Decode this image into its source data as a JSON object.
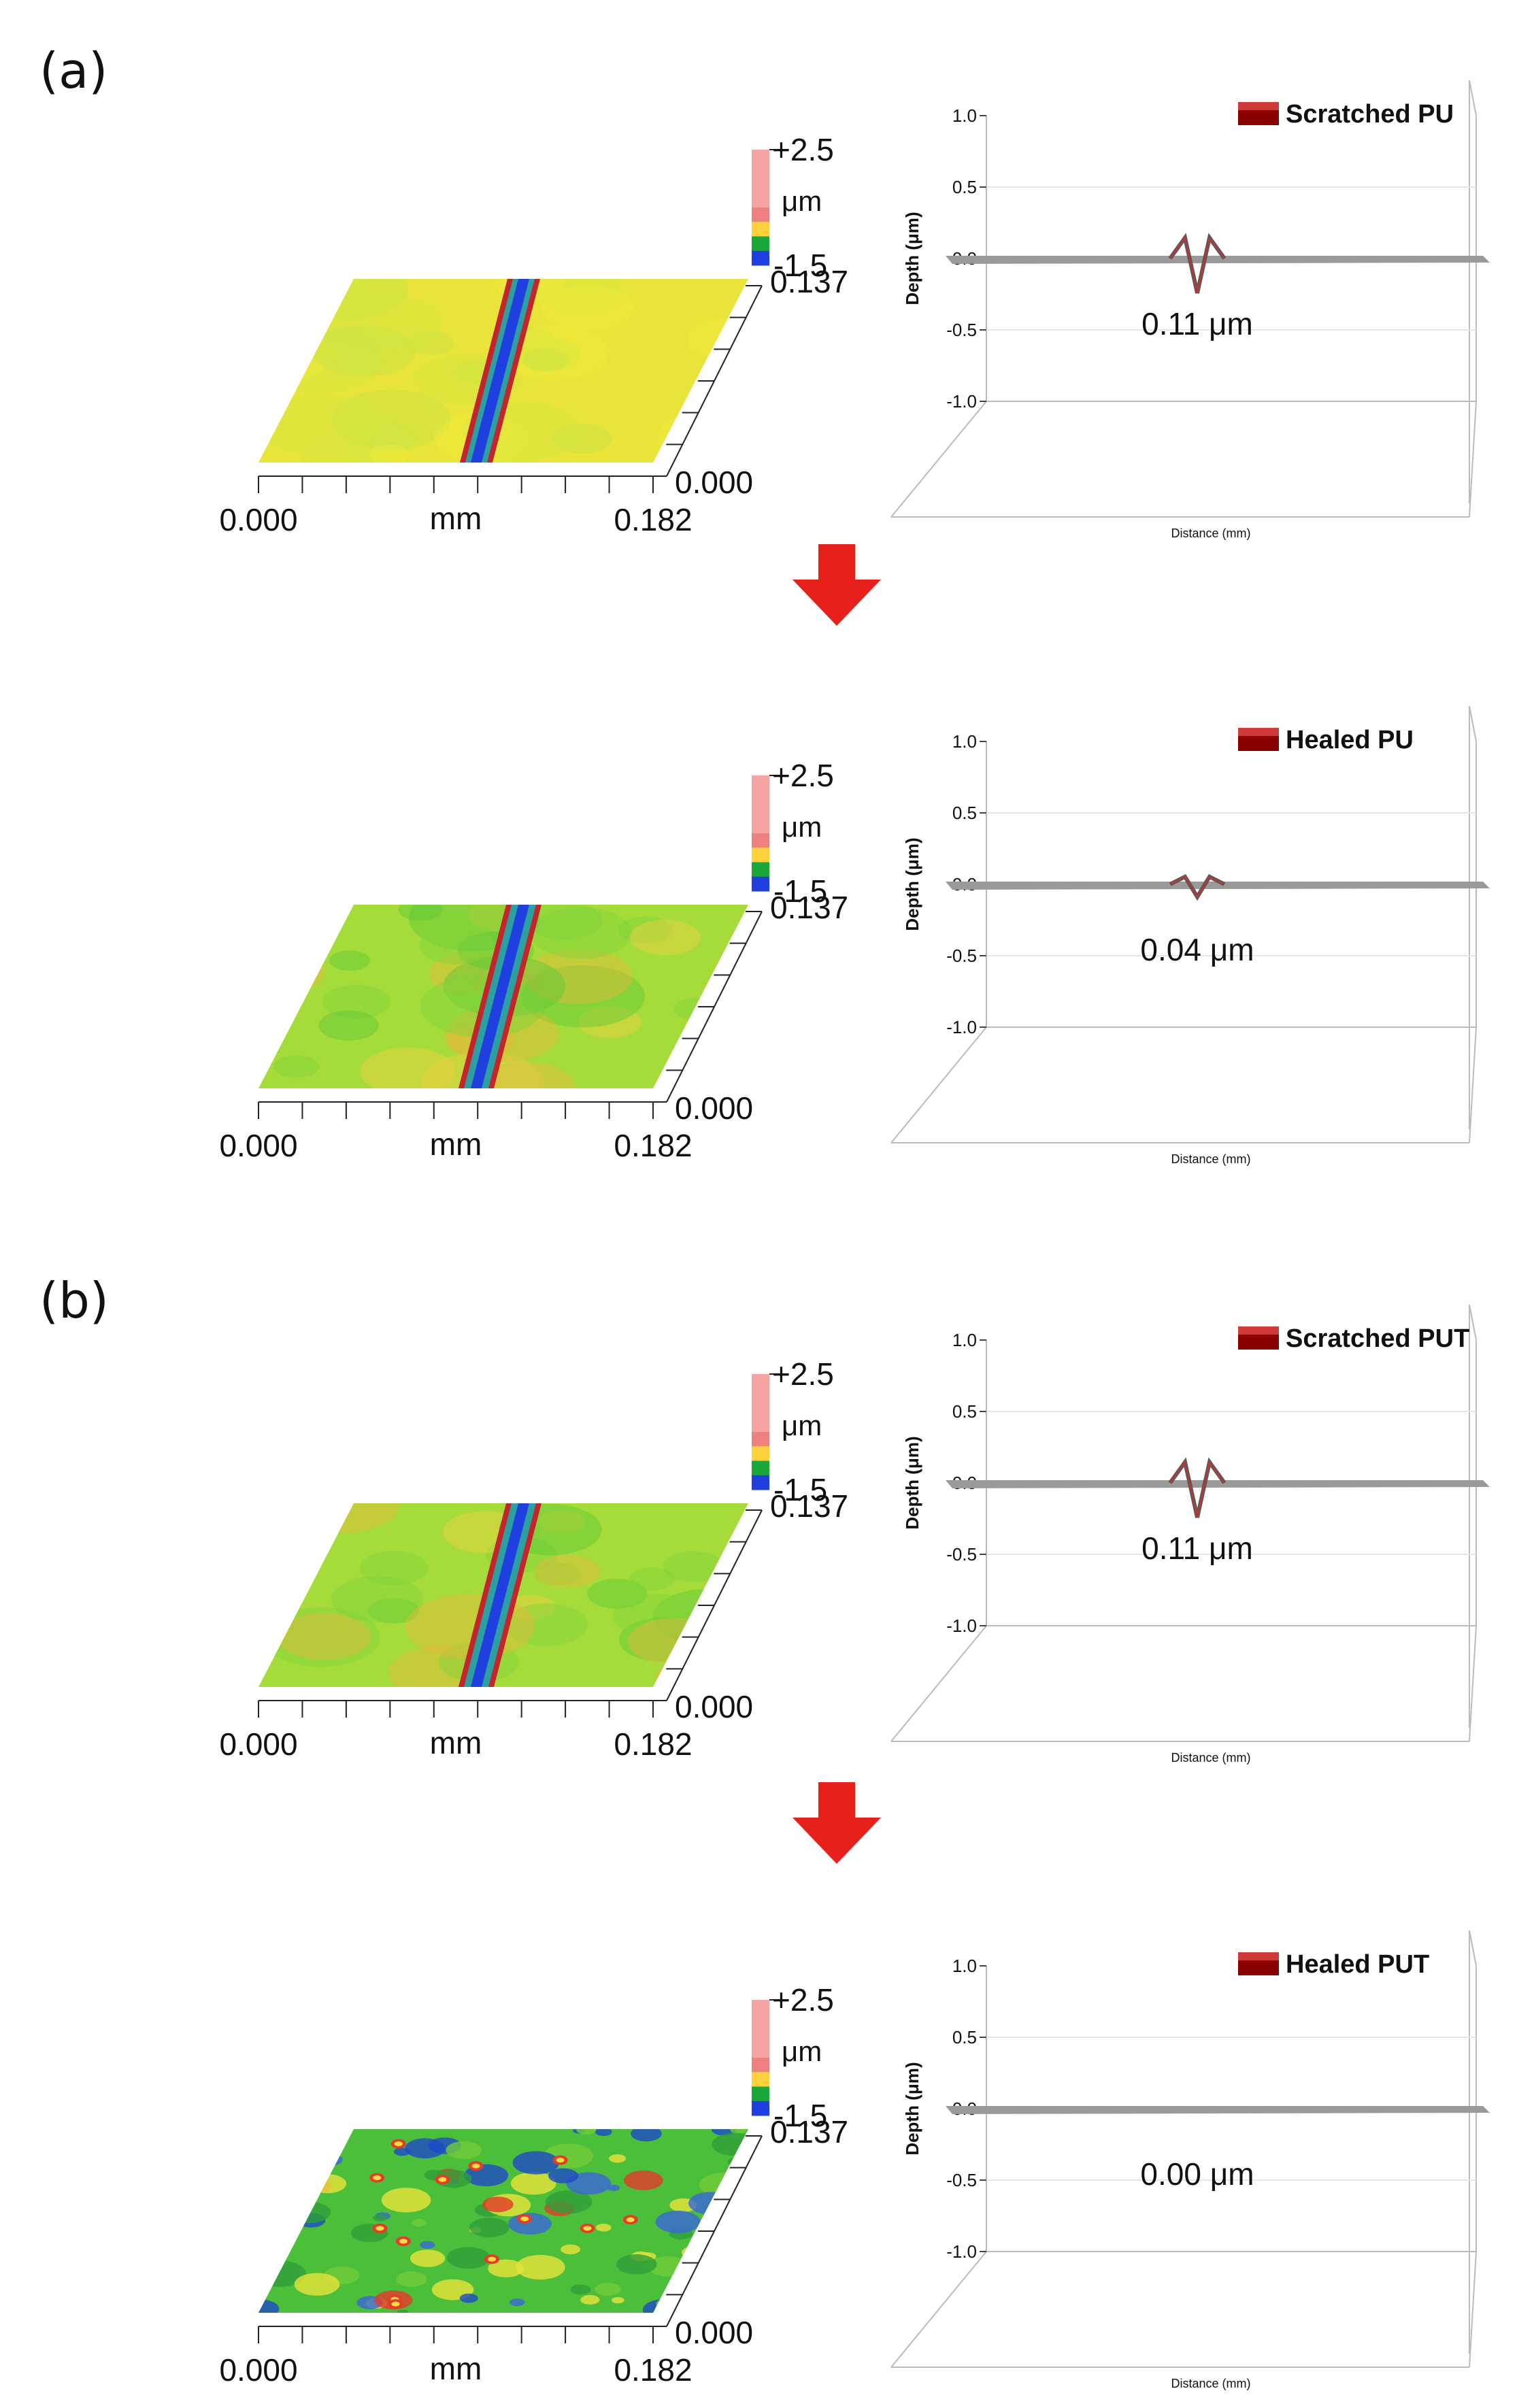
{
  "panel_labels": [
    "(a)",
    "(b)"
  ],
  "chart_data": [
    {
      "type": "heatmap",
      "sample": "Scratched PU",
      "colorbar": {
        "max_label": "+2.5",
        "unit_label": "μm",
        "min_label": "-1.5"
      },
      "x_axis": {
        "start_label": "0.000",
        "unit_label": "mm",
        "end_label": "0.182"
      },
      "y_axis": {
        "start_label": "0.000",
        "end_label": "0.137"
      },
      "profile": {
        "ylim": [
          -1.0,
          1.0
        ],
        "yticks": [
          "1.0",
          "0.5",
          "0.0",
          "-0.5",
          "-1.0"
        ],
        "ylabel": "Depth (μm)",
        "xlabel": "Distance (mm)",
        "legend": "Scratched PU",
        "depth_label": "0.11 μm",
        "depth": 0.11
      }
    },
    {
      "type": "heatmap",
      "sample": "Healed PU",
      "colorbar": {
        "max_label": "+2.5",
        "unit_label": "μm",
        "min_label": "-1.5"
      },
      "x_axis": {
        "start_label": "0.000",
        "unit_label": "mm",
        "end_label": "0.182"
      },
      "y_axis": {
        "start_label": "0.000",
        "end_label": "0.137"
      },
      "profile": {
        "ylim": [
          -1.0,
          1.0
        ],
        "yticks": [
          "1.0",
          "0.5",
          "0.0",
          "-0.5",
          "-1.0"
        ],
        "ylabel": "Depth (μm)",
        "xlabel": "Distance (mm)",
        "legend": "Healed PU",
        "depth_label": "0.04 μm",
        "depth": 0.04
      }
    },
    {
      "type": "heatmap",
      "sample": "Scratched PUT",
      "colorbar": {
        "max_label": "+2.5",
        "unit_label": "μm",
        "min_label": "-1.5"
      },
      "x_axis": {
        "start_label": "0.000",
        "unit_label": "mm",
        "end_label": "0.182"
      },
      "y_axis": {
        "start_label": "0.000",
        "end_label": "0.137"
      },
      "profile": {
        "ylim": [
          -1.0,
          1.0
        ],
        "yticks": [
          "1.0",
          "0.5",
          "0.0",
          "-0.5",
          "-1.0"
        ],
        "ylabel": "Depth (μm)",
        "xlabel": "Distance (mm)",
        "legend": "Scratched PUT",
        "depth_label": "0.11 μm",
        "depth": 0.11
      }
    },
    {
      "type": "heatmap",
      "sample": "Healed PUT",
      "colorbar": {
        "max_label": "+2.5",
        "unit_label": "μm",
        "min_label": "-1.5"
      },
      "x_axis": {
        "start_label": "0.000",
        "unit_label": "mm",
        "end_label": "0.182"
      },
      "y_axis": {
        "start_label": "0.000",
        "end_label": "0.137"
      },
      "profile": {
        "ylim": [
          -1.0,
          1.0
        ],
        "yticks": [
          "1.0",
          "0.5",
          "0.0",
          "-0.5",
          "-1.0"
        ],
        "ylabel": "Depth (μm)",
        "xlabel": "Distance (mm)",
        "legend": "Healed PUT",
        "depth_label": "0.00 μm",
        "depth": 0.0
      }
    }
  ],
  "colors": {
    "colorbar": [
      "#f6a3a3",
      "#f6a3a3",
      "#f6a3a3",
      "#f6a3a3",
      "#f08080",
      "#ffd23c",
      "#1aa83a",
      "#1f3fe0"
    ],
    "arrow": "#e8201c",
    "profile_line": "#777777",
    "groove": "#c4252a",
    "legend_swatch": "#8a0000"
  }
}
